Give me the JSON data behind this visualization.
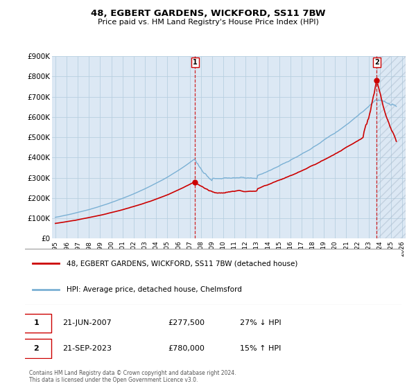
{
  "title": "48, EGBERT GARDENS, WICKFORD, SS11 7BW",
  "subtitle": "Price paid vs. HM Land Registry's House Price Index (HPI)",
  "legend_line1": "48, EGBERT GARDENS, WICKFORD, SS11 7BW (detached house)",
  "legend_line2": "HPI: Average price, detached house, Chelmsford",
  "footnote_line1": "Contains HM Land Registry data © Crown copyright and database right 2024.",
  "footnote_line2": "This data is licensed under the Open Government Licence v3.0.",
  "annotation1_date": "21-JUN-2007",
  "annotation1_price": "£277,500",
  "annotation1_hpi": "27% ↓ HPI",
  "annotation2_date": "21-SEP-2023",
  "annotation2_price": "£780,000",
  "annotation2_hpi": "15% ↑ HPI",
  "red_color": "#cc0000",
  "blue_color": "#7ab0d4",
  "background_color": "#ffffff",
  "plot_bg": "#dce8f4",
  "grid_color": "#b8cfe0",
  "ylim": [
    0,
    900000
  ],
  "yticks": [
    0,
    100000,
    200000,
    300000,
    400000,
    500000,
    600000,
    700000,
    800000,
    900000
  ],
  "ytick_labels": [
    "£0",
    "£100K",
    "£200K",
    "£300K",
    "£400K",
    "£500K",
    "£600K",
    "£700K",
    "£800K",
    "£900K"
  ],
  "xlim_min": 1994.7,
  "xlim_max": 2026.3,
  "xticks": [
    1995,
    1996,
    1997,
    1998,
    1999,
    2000,
    2001,
    2002,
    2003,
    2004,
    2005,
    2006,
    2007,
    2008,
    2009,
    2010,
    2011,
    2012,
    2013,
    2014,
    2015,
    2016,
    2017,
    2018,
    2019,
    2020,
    2021,
    2022,
    2023,
    2024,
    2025,
    2026
  ],
  "marker1_x": 2007.47,
  "marker1_y": 277500,
  "marker2_x": 2023.72,
  "marker2_y": 780000,
  "dashed_x1": 2007.47,
  "dashed_x2": 2023.72,
  "hatch_start_x": 2023.72
}
